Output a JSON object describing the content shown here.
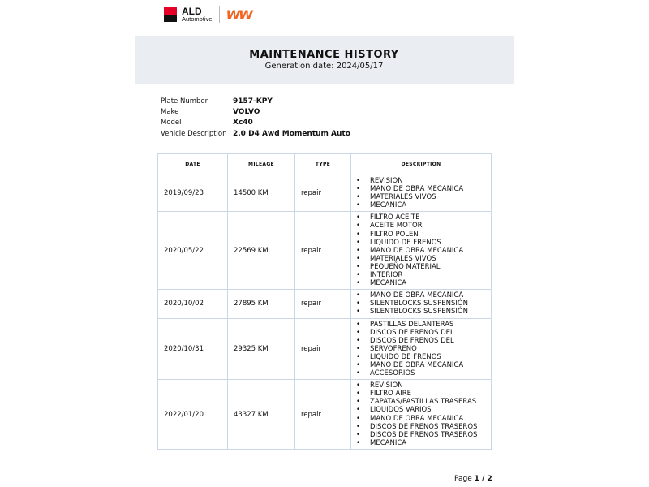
{
  "logo": {
    "brand": "ALD",
    "sub": "Automotive",
    "partner": "W"
  },
  "header": {
    "title": "MAINTENANCE HISTORY",
    "generation": "Generation date: 2024/05/17"
  },
  "vehicle": [
    {
      "label": "Plate Number",
      "value": "9157-KPY"
    },
    {
      "label": "Make",
      "value": "VOLVO"
    },
    {
      "label": "Model",
      "value": "Xc40"
    },
    {
      "label": "Vehicle Description",
      "value": "2.0 D4 Awd Momentum Auto"
    }
  ],
  "table": {
    "headers": [
      "DATE",
      "MILEAGE",
      "TYPE",
      "DESCRIPTION"
    ],
    "rows": [
      {
        "date": "2019/09/23",
        "mileage": "14500 KM",
        "type": "repair",
        "items": [
          "REVISION",
          "MANO DE OBRA MECANICA",
          "MATERIALES VIVOS",
          "MECANICA"
        ]
      },
      {
        "date": "2020/05/22",
        "mileage": "22569 KM",
        "type": "repair",
        "items": [
          "FILTRO ACEITE",
          "ACEITE MOTOR",
          "FILTRO POLEN",
          "LIQUIDO DE FRENOS",
          "MANO DE OBRA MECANICA",
          "MATERIALES VIVOS",
          "PEQUEÑO MATERIAL",
          "INTERIOR",
          "MECANICA"
        ]
      },
      {
        "date": "2020/10/02",
        "mileage": "27895 KM",
        "type": "repair",
        "items": [
          "MANO DE OBRA MECANICA",
          "SILENTBLOCKS SUSPENSIÓN",
          "SILENTBLOCKS SUSPENSIÓN"
        ]
      },
      {
        "date": "2020/10/31",
        "mileage": "29325 KM",
        "type": "repair",
        "items": [
          "PASTILLAS DELANTERAS",
          "DISCOS DE FRENOS DEL",
          "DISCOS DE FRENOS DEL",
          "SERVOFRENO",
          "LIQUIDO DE FRENOS",
          "MANO DE OBRA MECANICA",
          "ACCESORIOS"
        ]
      },
      {
        "date": "2022/01/20",
        "mileage": "43327 KM",
        "type": "repair",
        "items": [
          "REVISION",
          "FILTRO AIRE",
          "ZAPATAS/PASTILLAS TRASERAS",
          "LIQUIDOS VARIOS",
          "MANO DE OBRA MECANICA",
          "DISCOS DE FRENOS TRASEROS",
          "DISCOS DE FRENOS TRASEROS",
          "MECANICA"
        ]
      }
    ]
  },
  "footer": {
    "page_label": "Page ",
    "page": "1 / 2"
  }
}
